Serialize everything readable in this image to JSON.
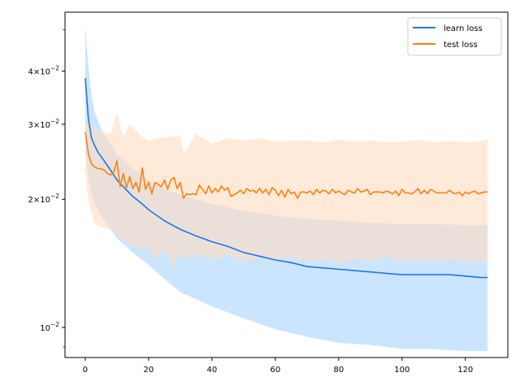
{
  "chart_data": {
    "type": "line",
    "title": "",
    "xlabel": "",
    "ylabel": "",
    "y_scale": "log",
    "xlim": [
      -6.4,
      133.4
    ],
    "ylim": [
      0.0085,
      0.055
    ],
    "grid": false,
    "legend_position": "top-right",
    "x_ticks": [
      0,
      20,
      40,
      60,
      80,
      100,
      120
    ],
    "x_tick_labels": [
      "0",
      "20",
      "40",
      "60",
      "80",
      "100",
      "120"
    ],
    "y_major_ticks": [
      0.01,
      0.02,
      0.03,
      0.04
    ],
    "y_tick_labels": [
      {
        "value": 0.04,
        "mantissa": "4",
        "base": "10",
        "exp": "−2"
      },
      {
        "value": 0.03,
        "mantissa": "3",
        "base": "10",
        "exp": "−2"
      },
      {
        "value": 0.02,
        "mantissa": "2",
        "base": "10",
        "exp": "−2"
      },
      {
        "value": 0.01,
        "mantissa": "",
        "base": "10",
        "exp": "−2"
      }
    ],
    "y_minor_ticks": [
      0.009,
      0.05
    ],
    "series": [
      {
        "name": "learn loss",
        "color": "#1f77e0",
        "band_color": "#aad4fd",
        "mean_points": [
          [
            0,
            0.0385
          ],
          [
            1,
            0.0308
          ],
          [
            2,
            0.0278
          ],
          [
            3,
            0.0267
          ],
          [
            4,
            0.0258
          ],
          [
            6,
            0.0246
          ],
          [
            8,
            0.0234
          ],
          [
            10,
            0.0222
          ],
          [
            12,
            0.0214
          ],
          [
            15,
            0.0203
          ],
          [
            18,
            0.0195
          ],
          [
            20,
            0.0189
          ],
          [
            25,
            0.0178
          ],
          [
            30,
            0.017
          ],
          [
            35,
            0.0164
          ],
          [
            40,
            0.0159
          ],
          [
            45,
            0.0155
          ],
          [
            50,
            0.015
          ],
          [
            55,
            0.0147
          ],
          [
            60,
            0.0144
          ],
          [
            65,
            0.0142
          ],
          [
            70,
            0.0139
          ],
          [
            75,
            0.0138
          ],
          [
            80,
            0.0137
          ],
          [
            85,
            0.0136
          ],
          [
            90,
            0.0135
          ],
          [
            95,
            0.0134
          ],
          [
            100,
            0.0133
          ],
          [
            105,
            0.0133
          ],
          [
            110,
            0.0133
          ],
          [
            115,
            0.0133
          ],
          [
            120,
            0.0132
          ],
          [
            125,
            0.0131
          ],
          [
            127,
            0.0131
          ]
        ],
        "upper_points": [
          [
            0,
            0.051
          ],
          [
            1,
            0.041
          ],
          [
            2,
            0.035
          ],
          [
            3,
            0.032
          ],
          [
            5,
            0.029
          ],
          [
            8,
            0.027
          ],
          [
            10,
            0.0255
          ],
          [
            15,
            0.0236
          ],
          [
            20,
            0.0222
          ],
          [
            25,
            0.0212
          ],
          [
            30,
            0.0205
          ],
          [
            40,
            0.0195
          ],
          [
            50,
            0.0188
          ],
          [
            60,
            0.0183
          ],
          [
            70,
            0.018
          ],
          [
            80,
            0.0178
          ],
          [
            90,
            0.0176
          ],
          [
            100,
            0.0175
          ],
          [
            110,
            0.0175
          ],
          [
            120,
            0.0174
          ],
          [
            127,
            0.0174
          ]
        ],
        "lower_points": [
          [
            0,
            0.026
          ],
          [
            1,
            0.0225
          ],
          [
            2,
            0.0205
          ],
          [
            3,
            0.0195
          ],
          [
            5,
            0.0182
          ],
          [
            8,
            0.017
          ],
          [
            10,
            0.0162
          ],
          [
            15,
            0.015
          ],
          [
            20,
            0.014
          ],
          [
            25,
            0.013
          ],
          [
            30,
            0.0121
          ],
          [
            40,
            0.0112
          ],
          [
            50,
            0.0105
          ],
          [
            60,
            0.0099
          ],
          [
            70,
            0.0095
          ],
          [
            80,
            0.0092
          ],
          [
            90,
            0.0091
          ],
          [
            100,
            0.0089
          ],
          [
            110,
            0.0089
          ],
          [
            120,
            0.0088
          ],
          [
            127,
            0.0088
          ]
        ]
      },
      {
        "name": "test loss",
        "color": "#ff7f0e",
        "band_color": "#ffdcc0",
        "mean_points": [
          [
            0,
            0.0288
          ],
          [
            1,
            0.0255
          ],
          [
            2,
            0.0242
          ],
          [
            3,
            0.0238
          ],
          [
            4,
            0.0236
          ],
          [
            5,
            0.0236
          ],
          [
            6,
            0.0234
          ],
          [
            7,
            0.023
          ],
          [
            8,
            0.0228
          ],
          [
            9,
            0.0232
          ],
          [
            10,
            0.0246
          ],
          [
            11,
            0.0214
          ],
          [
            12,
            0.023
          ],
          [
            13,
            0.0213
          ],
          [
            14,
            0.0226
          ],
          [
            15,
            0.0212
          ],
          [
            16,
            0.0219
          ],
          [
            17,
            0.0208
          ],
          [
            18,
            0.0237
          ],
          [
            19,
            0.0211
          ],
          [
            20,
            0.0219
          ],
          [
            21,
            0.0206
          ],
          [
            22,
            0.0219
          ],
          [
            23,
            0.0217
          ],
          [
            24,
            0.0214
          ],
          [
            25,
            0.0222
          ],
          [
            26,
            0.0211
          ],
          [
            27,
            0.0222
          ],
          [
            28,
            0.0225
          ],
          [
            29,
            0.0212
          ],
          [
            30,
            0.0219
          ],
          [
            31,
            0.0201
          ],
          [
            32,
            0.0206
          ],
          [
            33,
            0.0205
          ],
          [
            34,
            0.0206
          ],
          [
            35,
            0.0205
          ],
          [
            36,
            0.0216
          ],
          [
            37,
            0.0211
          ],
          [
            38,
            0.0206
          ],
          [
            39,
            0.0215
          ],
          [
            40,
            0.0207
          ],
          [
            41,
            0.0212
          ],
          [
            42,
            0.0208
          ],
          [
            43,
            0.0215
          ],
          [
            44,
            0.021
          ],
          [
            45,
            0.0213
          ],
          [
            46,
            0.0203
          ],
          [
            47,
            0.0205
          ],
          [
            48,
            0.0207
          ],
          [
            49,
            0.021
          ],
          [
            50,
            0.0206
          ],
          [
            51,
            0.0212
          ],
          [
            52,
            0.0209
          ],
          [
            53,
            0.021
          ],
          [
            54,
            0.0207
          ],
          [
            55,
            0.0212
          ],
          [
            56,
            0.0207
          ],
          [
            57,
            0.0211
          ],
          [
            58,
            0.0205
          ],
          [
            59,
            0.0213
          ],
          [
            60,
            0.021
          ],
          [
            61,
            0.0204
          ],
          [
            62,
            0.021
          ],
          [
            63,
            0.0202
          ],
          [
            64,
            0.0211
          ],
          [
            65,
            0.0206
          ],
          [
            66,
            0.0208
          ],
          [
            67,
            0.0201
          ],
          [
            68,
            0.0208
          ],
          [
            69,
            0.0208
          ],
          [
            70,
            0.0207
          ],
          [
            71,
            0.0209
          ],
          [
            72,
            0.0205
          ],
          [
            73,
            0.0211
          ],
          [
            74,
            0.0207
          ],
          [
            75,
            0.021
          ],
          [
            76,
            0.0209
          ],
          [
            77,
            0.0206
          ],
          [
            78,
            0.0211
          ],
          [
            79,
            0.0207
          ],
          [
            80,
            0.0209
          ],
          [
            81,
            0.0207
          ],
          [
            82,
            0.0205
          ],
          [
            83,
            0.021
          ],
          [
            84,
            0.0208
          ],
          [
            85,
            0.0207
          ],
          [
            86,
            0.0212
          ],
          [
            87,
            0.0208
          ],
          [
            88,
            0.0209
          ],
          [
            89,
            0.0211
          ],
          [
            90,
            0.0205
          ],
          [
            91,
            0.0208
          ],
          [
            92,
            0.0208
          ],
          [
            93,
            0.0208
          ],
          [
            94,
            0.0207
          ],
          [
            95,
            0.0209
          ],
          [
            96,
            0.0208
          ],
          [
            97,
            0.0206
          ],
          [
            98,
            0.0209
          ],
          [
            99,
            0.0204
          ],
          [
            100,
            0.0211
          ],
          [
            101,
            0.0207
          ],
          [
            102,
            0.0207
          ],
          [
            103,
            0.0206
          ],
          [
            104,
            0.0208
          ],
          [
            105,
            0.0212
          ],
          [
            106,
            0.0206
          ],
          [
            107,
            0.021
          ],
          [
            108,
            0.0206
          ],
          [
            109,
            0.0211
          ],
          [
            110,
            0.0209
          ],
          [
            111,
            0.0207
          ],
          [
            112,
            0.0207
          ],
          [
            113,
            0.0207
          ],
          [
            114,
            0.0207
          ],
          [
            115,
            0.021
          ],
          [
            116,
            0.0207
          ],
          [
            117,
            0.0206
          ],
          [
            118,
            0.0208
          ],
          [
            119,
            0.0204
          ],
          [
            120,
            0.0208
          ],
          [
            121,
            0.0206
          ],
          [
            122,
            0.0208
          ],
          [
            123,
            0.0209
          ],
          [
            124,
            0.0206
          ],
          [
            125,
            0.0207
          ],
          [
            126,
            0.0208
          ],
          [
            127,
            0.0208
          ]
        ],
        "upper_points": [
          [
            0,
            0.0305
          ],
          [
            1,
            0.03
          ],
          [
            3,
            0.0295
          ],
          [
            5,
            0.029
          ],
          [
            8,
            0.0285
          ],
          [
            10,
            0.0318
          ],
          [
            12,
            0.028
          ],
          [
            14,
            0.03
          ],
          [
            16,
            0.029
          ],
          [
            18,
            0.028
          ],
          [
            20,
            0.0275
          ],
          [
            25,
            0.028
          ],
          [
            30,
            0.0282
          ],
          [
            31,
            0.0255
          ],
          [
            33,
            0.027
          ],
          [
            35,
            0.0285
          ],
          [
            40,
            0.027
          ],
          [
            45,
            0.0278
          ],
          [
            50,
            0.0275
          ],
          [
            55,
            0.0278
          ],
          [
            60,
            0.0273
          ],
          [
            65,
            0.0275
          ],
          [
            70,
            0.0275
          ],
          [
            75,
            0.0272
          ],
          [
            80,
            0.0276
          ],
          [
            85,
            0.0273
          ],
          [
            90,
            0.0275
          ],
          [
            95,
            0.0272
          ],
          [
            100,
            0.0273
          ],
          [
            105,
            0.0276
          ],
          [
            110,
            0.0272
          ],
          [
            115,
            0.0274
          ],
          [
            120,
            0.0272
          ],
          [
            125,
            0.0274
          ],
          [
            127,
            0.0277
          ]
        ],
        "lower_points": [
          [
            0,
            0.023
          ],
          [
            1,
            0.02
          ],
          [
            2,
            0.0185
          ],
          [
            3,
            0.0175
          ],
          [
            5,
            0.0172
          ],
          [
            8,
            0.017
          ],
          [
            10,
            0.0165
          ],
          [
            12,
            0.016
          ],
          [
            15,
            0.0155
          ],
          [
            20,
            0.0153
          ],
          [
            22,
            0.0145
          ],
          [
            25,
            0.0152
          ],
          [
            28,
            0.0138
          ],
          [
            30,
            0.015
          ],
          [
            32,
            0.0145
          ],
          [
            35,
            0.0148
          ],
          [
            40,
            0.0145
          ],
          [
            45,
            0.0148
          ],
          [
            50,
            0.0143
          ],
          [
            55,
            0.0146
          ],
          [
            60,
            0.0144
          ],
          [
            65,
            0.0146
          ],
          [
            70,
            0.0143
          ],
          [
            75,
            0.0145
          ],
          [
            80,
            0.0142
          ],
          [
            85,
            0.0145
          ],
          [
            90,
            0.0143
          ],
          [
            95,
            0.0146
          ],
          [
            100,
            0.0143
          ],
          [
            105,
            0.0145
          ],
          [
            110,
            0.0143
          ],
          [
            115,
            0.0145
          ],
          [
            120,
            0.0143
          ],
          [
            125,
            0.0143
          ],
          [
            127,
            0.0142
          ]
        ]
      }
    ]
  }
}
